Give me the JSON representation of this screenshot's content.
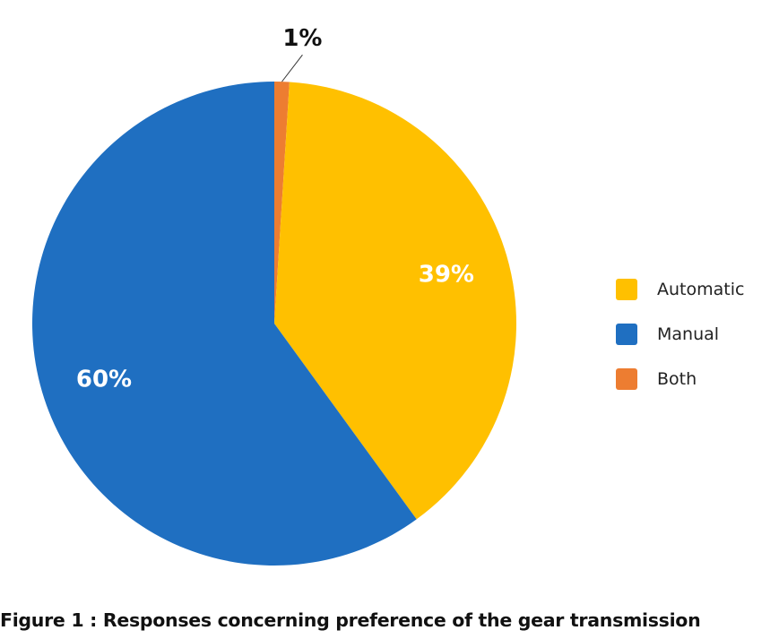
{
  "chart_data": {
    "type": "pie",
    "title": "Figure 1 : Responses concerning preference of the gear  transmission",
    "categories": [
      "Automatic",
      "Manual",
      "Both"
    ],
    "values": [
      39,
      60,
      1
    ],
    "labels": [
      "39%",
      "60%",
      "1%"
    ],
    "colors": [
      "#FFC000",
      "#1F6FC1",
      "#ED7D31"
    ],
    "start_angle_deg": 0,
    "slice_order_clockwise": [
      "Both",
      "Automatic",
      "Manual"
    ],
    "legend_position": "right"
  }
}
